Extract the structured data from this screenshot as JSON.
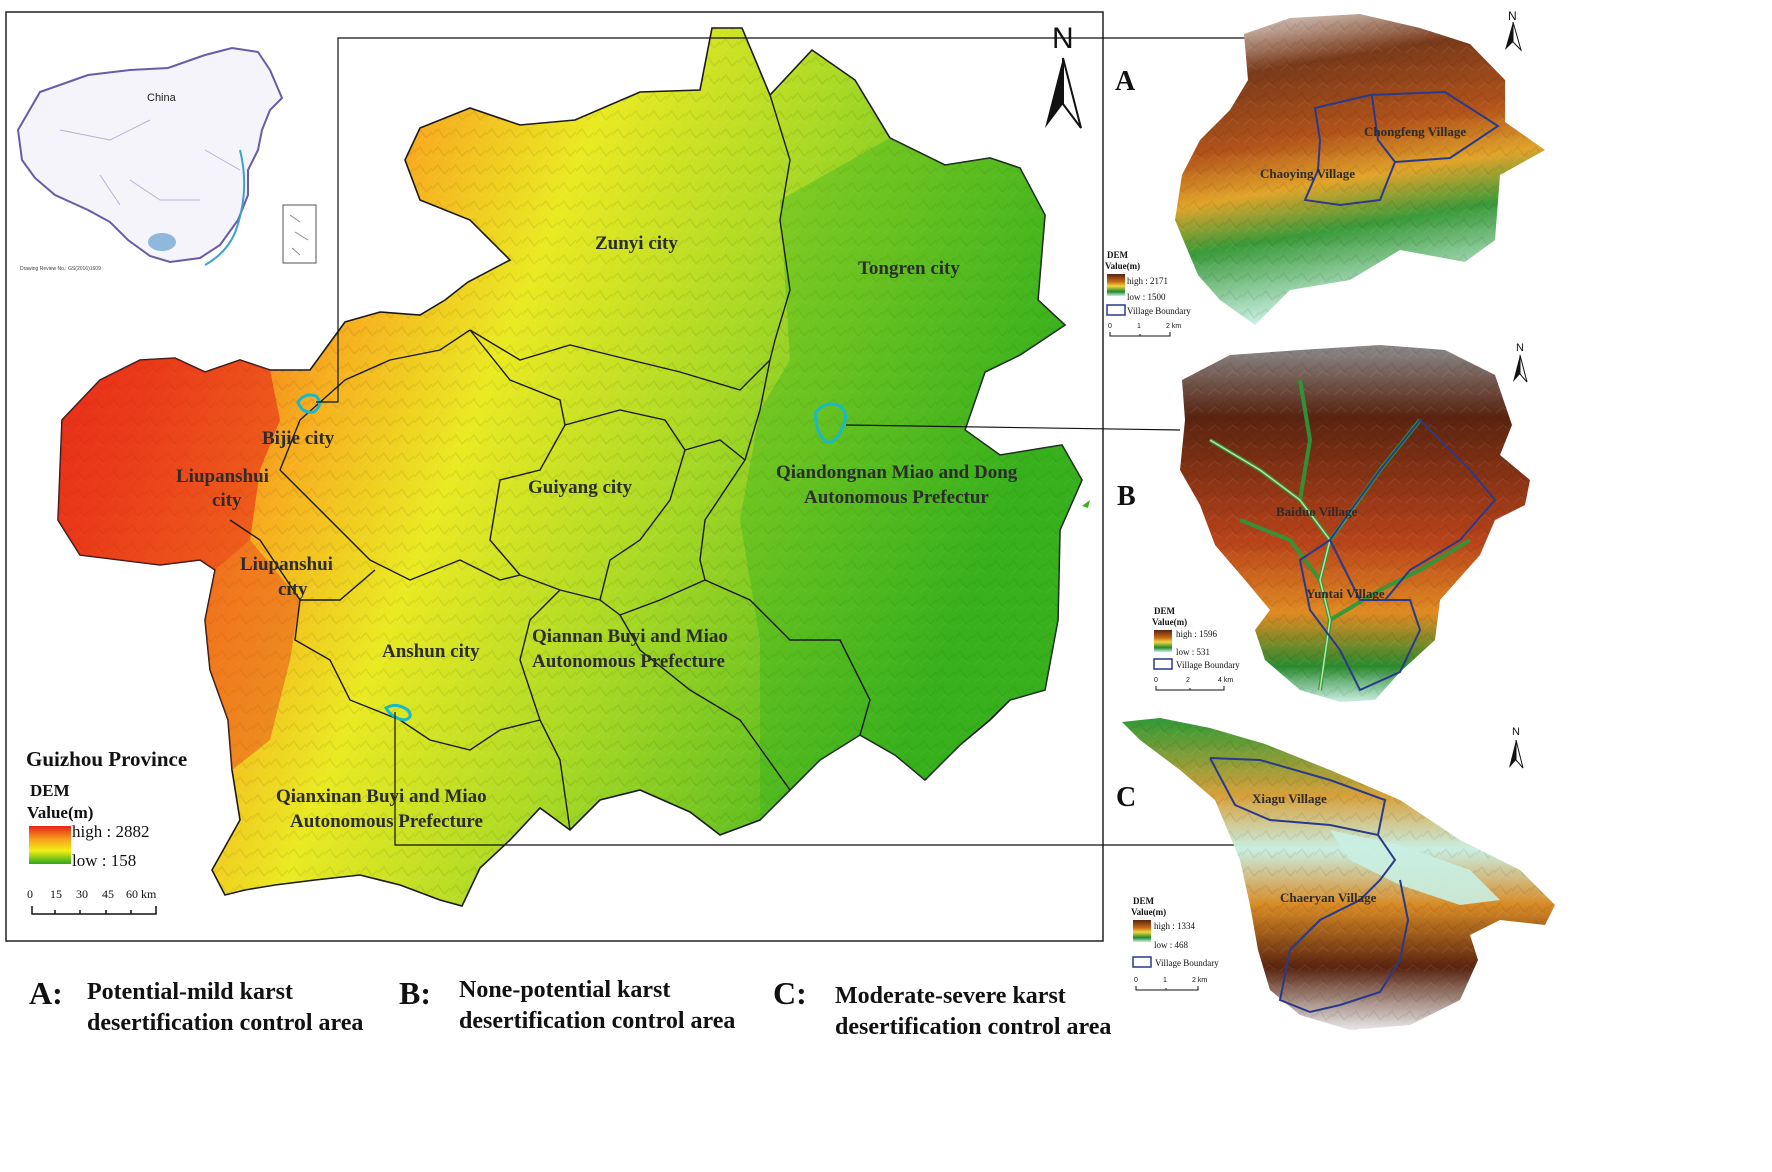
{
  "province": {
    "name": "Guizhou Province"
  },
  "north_label": "N",
  "inset": {
    "china_label": "China",
    "drawing_note": "Drawing Review No.: GS(2016)1609"
  },
  "main_legend": {
    "title_line1": "DEM",
    "title_line2": "Value(m)",
    "high": "high : 2882",
    "low": "low : 158",
    "scale_ticks": [
      "0",
      "15",
      "30",
      "45",
      "60 km"
    ],
    "colors": {
      "high": "#e8231a",
      "mid1": "#f7a11a",
      "mid2": "#f3ef18",
      "low": "#2aa81a"
    }
  },
  "regions": [
    {
      "name": "Zunyi city"
    },
    {
      "name": "Tongren city"
    },
    {
      "name": "Bijie city"
    },
    {
      "name": "Liupanshui city",
      "line1": "Liupanshui",
      "line2": "city"
    },
    {
      "name": "Liupanshui city",
      "line1": "Liupanshui",
      "line2": "city"
    },
    {
      "name": "Guiyang city"
    },
    {
      "name": "Qiandongnan Miao and Dong Autonomous Prefectur",
      "line1": "Qiandongnan Miao and Dong",
      "line2": "Autonomous Prefectur"
    },
    {
      "name": "Anshun city"
    },
    {
      "name": "Qiannan Buyi and Miao Autonomous Prefecture",
      "line1": "Qiannan Buyi and Miao",
      "line2": "Autonomous Prefecture"
    },
    {
      "name": "Qianxinan Buyi and Miao Autonomous Prefecture",
      "line1": "Qianxinan Buyi and Miao",
      "line2": "Autonomous Prefecture"
    }
  ],
  "panels": [
    {
      "letter": "A",
      "villages": [
        "Chongfeng Village",
        "Chaoying Village"
      ],
      "legend": {
        "title_line1": "DEM",
        "title_line2": "Value(m)",
        "high": "high : 2171",
        "low": "low : 1500",
        "boundary": "Village Boundary",
        "scale_ticks": [
          "0",
          "1",
          "2 km"
        ]
      }
    },
    {
      "letter": "B",
      "villages": [
        "Baiduo Village",
        "Yuntai Village"
      ],
      "legend": {
        "title_line1": "DEM",
        "title_line2": "Value(m)",
        "high": "high : 1596",
        "low": "low : 531",
        "boundary": "Village Boundary",
        "scale_ticks": [
          "0",
          "2",
          "4 km"
        ]
      }
    },
    {
      "letter": "C",
      "villages": [
        "Xiagu Village",
        "Chaeryan Village"
      ],
      "legend": {
        "title_line1": "DEM",
        "title_line2": "Value(m)",
        "high": "high : 1334",
        "low": "low : 468",
        "boundary": "Village Boundary",
        "scale_ticks": [
          "0",
          "1",
          "2 km"
        ]
      }
    }
  ],
  "inset_dem_colors": {
    "high": "#5a2410",
    "mid1": "#c86a14",
    "mid2": "#f0d640",
    "mid3": "#1e8a2e",
    "low": "#c8f0e6"
  },
  "captions": [
    {
      "letter": "A:",
      "line1": "Potential-mild karst",
      "line2": "desertification control area"
    },
    {
      "letter": "B:",
      "line1": "None-potential karst",
      "line2": "desertification control area"
    },
    {
      "letter": "C:",
      "line1": "Moderate-severe karst",
      "line2": "desertification control area"
    }
  ]
}
